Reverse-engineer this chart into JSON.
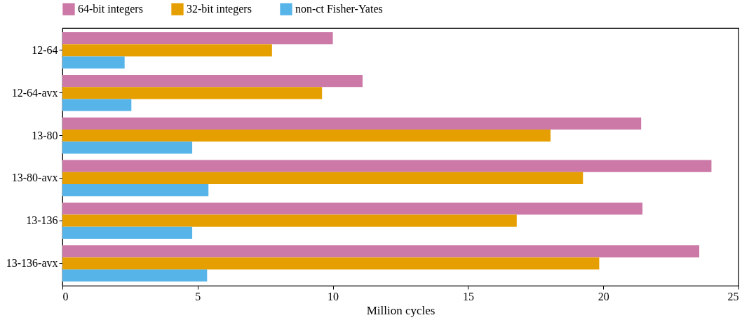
{
  "chart_data": {
    "type": "bar",
    "orientation": "horizontal",
    "xlabel": "Million cycles",
    "categories": [
      "12-64",
      "12-64-avx",
      "13-80",
      "13-80-avx",
      "13-136",
      "13-136-avx"
    ],
    "series": [
      {
        "name": "64-bit integers",
        "color": "#cc79a7",
        "values": [
          10.0,
          11.1,
          21.4,
          24.0,
          21.45,
          23.55
        ]
      },
      {
        "name": "32-bit integers",
        "color": "#e69f00",
        "values": [
          7.75,
          9.6,
          18.05,
          19.25,
          16.8,
          19.85
        ]
      },
      {
        "name": "non-ct Fisher-Yates",
        "color": "#56b4e9",
        "values": [
          2.3,
          2.55,
          4.8,
          5.4,
          4.8,
          5.35
        ]
      }
    ],
    "xlim": [
      0,
      25
    ],
    "xticks": [
      0,
      5,
      10,
      15,
      20,
      25
    ],
    "grid": false,
    "legend": "top"
  }
}
